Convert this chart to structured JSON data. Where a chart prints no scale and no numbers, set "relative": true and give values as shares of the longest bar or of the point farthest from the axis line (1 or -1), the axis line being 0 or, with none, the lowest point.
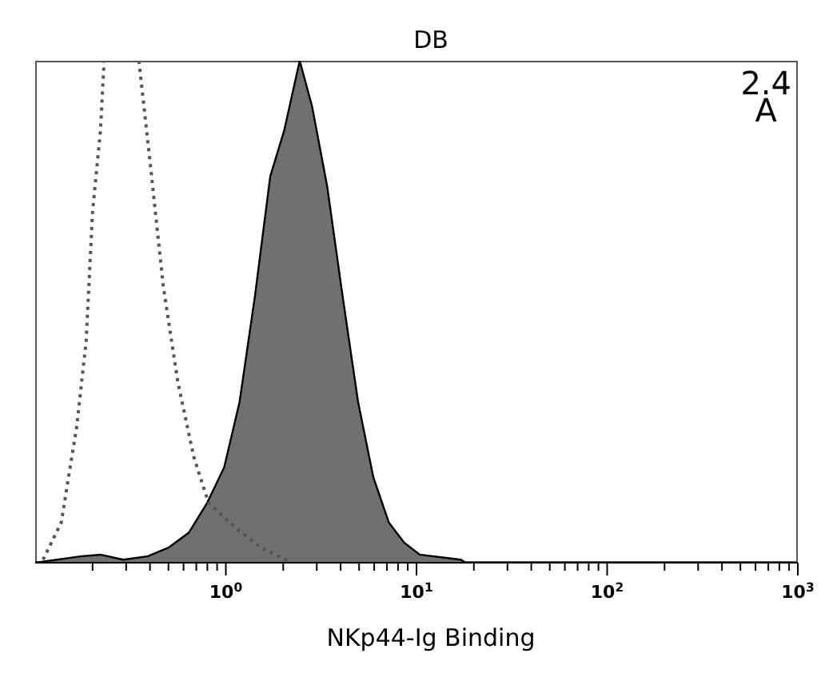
{
  "chart_data": {
    "type": "area",
    "title": "DB",
    "xlabel": "NKp44-Ig Binding",
    "annotations": [
      "2.4",
      "A"
    ],
    "relative": true,
    "log": "x",
    "xlim": [
      0.1,
      1000
    ],
    "xticks": [
      {
        "value": 0.2,
        "label": null
      },
      {
        "value": 0.3,
        "label": null
      },
      {
        "value": 0.4,
        "label": null
      },
      {
        "value": 0.5,
        "label": null
      },
      {
        "value": 0.6,
        "label": null
      },
      {
        "value": 0.7,
        "label": null
      },
      {
        "value": 0.8,
        "label": null
      },
      {
        "value": 0.9,
        "label": null
      },
      {
        "value": 1,
        "label": "10$^{0}$"
      },
      {
        "value": 2,
        "label": null
      },
      {
        "value": 3,
        "label": null
      },
      {
        "value": 4,
        "label": null
      },
      {
        "value": 5,
        "label": null
      },
      {
        "value": 6,
        "label": null
      },
      {
        "value": 7,
        "label": null
      },
      {
        "value": 8,
        "label": null
      },
      {
        "value": 9,
        "label": null
      },
      {
        "value": 10,
        "label": "10$^{1}$"
      },
      {
        "value": 20,
        "label": null
      },
      {
        "value": 30,
        "label": null
      },
      {
        "value": 40,
        "label": null
      },
      {
        "value": 50,
        "label": null
      },
      {
        "value": 60,
        "label": null
      },
      {
        "value": 70,
        "label": null
      },
      {
        "value": 80,
        "label": null
      },
      {
        "value": 90,
        "label": null
      },
      {
        "value": 100,
        "label": "10$^{2}$"
      },
      {
        "value": 200,
        "label": null
      },
      {
        "value": 300,
        "label": null
      },
      {
        "value": 400,
        "label": null
      },
      {
        "value": 500,
        "label": null
      },
      {
        "value": 600,
        "label": null
      },
      {
        "value": 700,
        "label": null
      },
      {
        "value": 800,
        "label": null
      },
      {
        "value": 900,
        "label": null
      },
      {
        "value": 1000,
        "label": "10$^{3}$"
      }
    ],
    "grid": false,
    "legend": false,
    "series": [
      {
        "type": "line",
        "line_style": "dotted",
        "color": "#555555",
        "x": [
          0.11,
          0.137,
          0.165,
          0.185,
          0.2,
          0.22,
          0.23,
          0.3,
          0.35,
          0.4,
          0.47,
          0.56,
          0.68,
          0.81,
          1.12,
          1.53,
          2.22
        ],
        "values": [
          0.006,
          0.08,
          0.27,
          0.44,
          0.7,
          0.86,
          1,
          null,
          1,
          0.8,
          0.55,
          0.36,
          0.21,
          0.12,
          0.07,
          0.03,
          0
        ]
      },
      {
        "color": "#707070",
        "x": [
          0.1,
          0.175,
          0.22,
          0.29,
          0.39,
          0.5,
          0.64,
          0.8,
          0.98,
          1.18,
          1.42,
          1.71,
          2.02,
          2.44,
          2.83,
          3.4,
          4.1,
          4.94,
          5.94,
          7.16,
          8.62,
          10.4,
          17.1,
          18.1
        ],
        "values": [
          0,
          0.013,
          0.016,
          0.006,
          0.013,
          0.03,
          0.06,
          0.12,
          0.19,
          0.32,
          0.53,
          0.77,
          0.86,
          1,
          0.91,
          0.75,
          0.53,
          0.32,
          0.17,
          0.08,
          0.04,
          0.016,
          0.006,
          0
        ]
      }
    ]
  }
}
